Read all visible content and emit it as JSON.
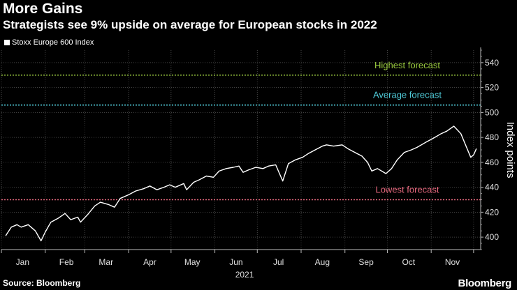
{
  "header": {
    "title": "More Gains",
    "subtitle": "Strategists see 9% upside on average for European stocks in 2022"
  },
  "legend": {
    "label": "Stoxx Europe 600 Index"
  },
  "footer": {
    "source": "Source: Bloomberg",
    "brand": "Bloomberg"
  },
  "colors": {
    "background": "#000000",
    "series": "#ffffff",
    "grid": "#555555",
    "highest": "#9bcc3f",
    "average": "#4fc9d6",
    "lowest": "#e8697f"
  },
  "chart_data": {
    "type": "line",
    "title": "More Gains",
    "subtitle": "Strategists see 9% upside on average for European stocks in 2022",
    "ylabel": "Index points",
    "xlabel": "2021",
    "ylim": [
      390,
      550
    ],
    "yticks": [
      400,
      420,
      440,
      460,
      480,
      500,
      520,
      540
    ],
    "y_axis_side": "right",
    "grid": true,
    "legend_position": "top-left",
    "x_tick_labels": [
      "Jan",
      "Feb",
      "Mar",
      "Apr",
      "May",
      "Jun",
      "Jul",
      "Aug",
      "Sep",
      "Oct",
      "Nov"
    ],
    "series": [
      {
        "name": "Stoxx Europe 600 Index",
        "x": [
          "2021-01-04",
          "2021-01-08",
          "2021-01-12",
          "2021-01-15",
          "2021-01-20",
          "2021-01-25",
          "2021-01-29",
          "2021-02-01",
          "2021-02-05",
          "2021-02-10",
          "2021-02-15",
          "2021-02-19",
          "2021-02-24",
          "2021-02-26",
          "2021-03-03",
          "2021-03-08",
          "2021-03-12",
          "2021-03-18",
          "2021-03-22",
          "2021-03-26",
          "2021-04-01",
          "2021-04-06",
          "2021-04-12",
          "2021-04-16",
          "2021-04-21",
          "2021-04-26",
          "2021-04-30",
          "2021-05-04",
          "2021-05-10",
          "2021-05-12",
          "2021-05-17",
          "2021-05-21",
          "2021-05-26",
          "2021-05-31",
          "2021-06-04",
          "2021-06-09",
          "2021-06-14",
          "2021-06-18",
          "2021-06-21",
          "2021-06-25",
          "2021-06-30",
          "2021-07-05",
          "2021-07-09",
          "2021-07-14",
          "2021-07-19",
          "2021-07-23",
          "2021-07-28",
          "2021-08-02",
          "2021-08-06",
          "2021-08-11",
          "2021-08-16",
          "2021-08-19",
          "2021-08-24",
          "2021-08-30",
          "2021-09-03",
          "2021-09-08",
          "2021-09-13",
          "2021-09-17",
          "2021-09-20",
          "2021-09-24",
          "2021-09-30",
          "2021-10-04",
          "2021-10-08",
          "2021-10-13",
          "2021-10-18",
          "2021-10-22",
          "2021-10-28",
          "2021-11-02",
          "2021-11-08",
          "2021-11-12",
          "2021-11-17",
          "2021-11-22",
          "2021-11-26",
          "2021-11-29",
          "2021-12-01",
          "2021-12-03"
        ],
        "y": [
          401,
          408,
          410,
          408,
          410,
          405,
          397,
          404,
          412,
          415,
          419,
          414,
          416,
          412,
          418,
          425,
          428,
          426,
          424,
          431,
          434,
          437,
          439,
          441,
          438,
          440,
          442,
          440,
          443,
          438,
          444,
          446,
          449,
          448,
          453,
          455,
          456,
          457,
          452,
          454,
          456,
          455,
          457,
          458,
          445,
          459,
          462,
          464,
          467,
          470,
          473,
          474,
          473,
          474,
          471,
          468,
          465,
          460,
          453,
          455,
          451,
          455,
          462,
          468,
          470,
          472,
          476,
          479,
          483,
          485,
          489,
          483,
          472,
          464,
          466,
          471
        ]
      }
    ],
    "reference_lines": [
      {
        "name": "Highest forecast",
        "value": 530
      },
      {
        "name": "Average forecast",
        "value": 506
      },
      {
        "name": "Lowest forecast",
        "value": 430
      }
    ]
  }
}
